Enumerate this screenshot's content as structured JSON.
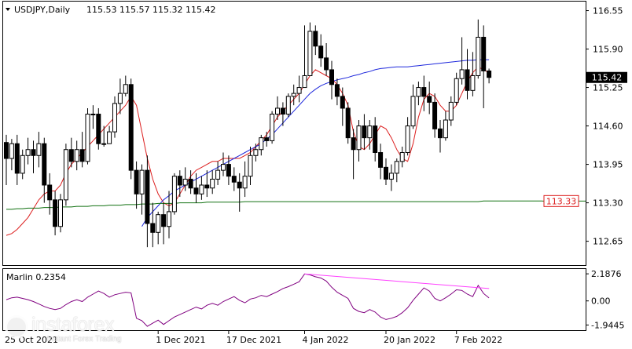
{
  "header": {
    "symbol": "USDJPY,Daily",
    "ohlc": "115.53 115.57 115.32 115.42",
    "indicator": "Marlin 0.2354"
  },
  "price_axis_labels": [
    "116.55",
    "115.90",
    "115.25",
    "114.60",
    "113.95",
    "113.30",
    "112.65"
  ],
  "osc_axis_labels": [
    "2.1876",
    "0.00",
    "-1.9445"
  ],
  "date_labels": [
    "1 Dec 2021",
    "17 Dec 2021",
    "4 Jan 2022",
    "20 Jan 2022",
    "7 Feb 2022"
  ],
  "current_price_label": "115.42",
  "level_label": "113.33",
  "watermark": {
    "name": "instaforex",
    "tagline": "Instant Forex Trading",
    "corner_text": "25 Oct 2021"
  },
  "colors": {
    "bull": "#ffffff",
    "bear": "#000000",
    "ma_fast": "#dc1e1e",
    "ma_mid": "#1e28dc",
    "ma_slow": "#107010",
    "oscillator": "#800080",
    "divergence": "#ff40ff",
    "level_box": "#dc1e1e"
  },
  "chart_data": [
    {
      "type": "candlestick",
      "title": "USDJPY,Daily",
      "ylim": [
        112.3,
        116.65
      ],
      "candles": [
        [
          114.32,
          114.05,
          114.45,
          113.6
        ],
        [
          114.05,
          114.3,
          114.38,
          113.85
        ],
        [
          114.3,
          113.8,
          114.45,
          113.6
        ],
        [
          113.8,
          114.1,
          114.2,
          113.7
        ],
        [
          114.1,
          114.2,
          114.4,
          113.95
        ],
        [
          114.2,
          114.1,
          114.35,
          113.8
        ],
        [
          114.1,
          114.3,
          114.5,
          113.9
        ],
        [
          114.3,
          113.6,
          114.4,
          113.3
        ],
        [
          113.6,
          113.35,
          113.8,
          113.1
        ],
        [
          113.35,
          112.9,
          113.5,
          112.75
        ],
        [
          112.9,
          113.35,
          113.45,
          112.8
        ],
        [
          113.35,
          114.2,
          114.3,
          113.25
        ],
        [
          114.2,
          114.0,
          114.4,
          113.9
        ],
        [
          114.0,
          114.2,
          114.35,
          113.85
        ],
        [
          114.2,
          114.0,
          114.5,
          113.9
        ],
        [
          114.0,
          114.8,
          114.9,
          113.95
        ],
        [
          114.8,
          114.8,
          114.95,
          114.55
        ],
        [
          114.8,
          114.3,
          114.9,
          114.2
        ],
        [
          114.3,
          114.3,
          114.6,
          114.25
        ],
        [
          114.3,
          114.5,
          114.6,
          114.3
        ],
        [
          114.5,
          114.98,
          115.1,
          114.4
        ],
        [
          114.98,
          115.15,
          115.4,
          114.8
        ],
        [
          115.15,
          115.3,
          115.45,
          115.1
        ],
        [
          115.3,
          113.85,
          115.4,
          113.7
        ],
        [
          113.85,
          113.45,
          114.0,
          113.2
        ],
        [
          113.45,
          113.85,
          113.95,
          113.1
        ],
        [
          113.85,
          112.95,
          114.1,
          112.55
        ],
        [
          112.95,
          112.8,
          113.3,
          112.55
        ],
        [
          112.8,
          113.1,
          113.15,
          112.6
        ],
        [
          113.1,
          112.9,
          113.3,
          112.6
        ],
        [
          112.9,
          113.15,
          113.5,
          112.7
        ],
        [
          113.15,
          113.75,
          113.8,
          113.1
        ],
        [
          113.75,
          113.6,
          113.85,
          113.4
        ],
        [
          113.6,
          113.7,
          113.9,
          113.5
        ],
        [
          113.7,
          113.55,
          113.85,
          113.45
        ],
        [
          113.55,
          113.45,
          113.8,
          113.3
        ],
        [
          113.45,
          113.6,
          113.75,
          113.35
        ],
        [
          113.6,
          113.55,
          113.85,
          113.4
        ],
        [
          113.55,
          113.7,
          113.85,
          113.45
        ],
        [
          113.7,
          113.85,
          114.0,
          113.6
        ],
        [
          113.85,
          113.95,
          114.15,
          113.75
        ],
        [
          113.95,
          113.75,
          114.1,
          113.6
        ],
        [
          113.75,
          113.65,
          113.9,
          113.5
        ],
        [
          113.65,
          113.55,
          113.8,
          113.15
        ],
        [
          113.55,
          113.75,
          114.0,
          113.4
        ],
        [
          113.75,
          114.1,
          114.25,
          113.6
        ],
        [
          114.1,
          114.2,
          114.3,
          114.0
        ],
        [
          114.2,
          114.4,
          114.45,
          114.1
        ],
        [
          114.4,
          114.35,
          114.5,
          114.25
        ],
        [
          114.35,
          114.8,
          114.85,
          114.3
        ],
        [
          114.8,
          114.9,
          115.1,
          114.7
        ],
        [
          114.9,
          114.8,
          115.0,
          114.6
        ],
        [
          114.8,
          115.1,
          115.15,
          114.75
        ],
        [
          115.1,
          115.15,
          115.3,
          114.95
        ],
        [
          115.15,
          115.25,
          115.45,
          115.0
        ],
        [
          115.25,
          115.45,
          116.3,
          115.3
        ],
        [
          115.45,
          116.2,
          116.35,
          115.5
        ],
        [
          116.2,
          115.95,
          116.3,
          115.8
        ],
        [
          115.95,
          115.75,
          116.15,
          115.6
        ],
        [
          115.75,
          115.55,
          116.0,
          115.45
        ],
        [
          115.55,
          115.3,
          115.7,
          115.05
        ],
        [
          115.3,
          115.1,
          115.4,
          114.95
        ],
        [
          115.1,
          114.9,
          115.25,
          114.6
        ],
        [
          114.9,
          114.4,
          115.0,
          114.3
        ],
        [
          114.4,
          114.2,
          114.55,
          113.7
        ],
        [
          114.2,
          114.6,
          114.7,
          114.0
        ],
        [
          114.6,
          114.4,
          114.8,
          114.2
        ],
        [
          114.4,
          114.6,
          114.7,
          114.2
        ],
        [
          114.6,
          114.15,
          114.75,
          114.0
        ],
        [
          114.15,
          113.9,
          114.3,
          113.7
        ],
        [
          113.9,
          113.7,
          114.05,
          113.6
        ],
        [
          113.7,
          113.8,
          113.95,
          113.5
        ],
        [
          113.8,
          114.0,
          114.05,
          113.65
        ],
        [
          114.0,
          114.15,
          114.25,
          113.9
        ],
        [
          114.15,
          114.6,
          114.75,
          114.1
        ],
        [
          114.6,
          115.1,
          115.3,
          114.55
        ],
        [
          115.1,
          115.25,
          115.35,
          114.95
        ],
        [
          115.25,
          115.1,
          115.45,
          114.85
        ],
        [
          115.1,
          115.0,
          115.35,
          114.8
        ],
        [
          115.0,
          114.55,
          115.15,
          114.4
        ],
        [
          114.55,
          114.4,
          114.7,
          114.15
        ],
        [
          114.4,
          114.7,
          114.85,
          114.35
        ],
        [
          114.7,
          115.0,
          115.1,
          114.6
        ],
        [
          115.0,
          115.4,
          115.5,
          114.95
        ],
        [
          115.4,
          115.55,
          116.1,
          115.3
        ],
        [
          115.55,
          115.2,
          115.9,
          115.05
        ],
        [
          115.2,
          115.45,
          115.85,
          115.1
        ],
        [
          115.45,
          116.1,
          116.4,
          115.4
        ],
        [
          116.1,
          115.53,
          116.3,
          114.9
        ],
        [
          115.53,
          115.42,
          115.57,
          115.32
        ]
      ],
      "series": [
        {
          "name": "",
          "role": "fast",
          "values": [
            112.75,
            112.78,
            112.85,
            112.95,
            113.05,
            113.2,
            113.35,
            113.45,
            113.5,
            113.5,
            113.6,
            113.8,
            113.95,
            114.05,
            114.15,
            114.25,
            114.35,
            114.45,
            114.55,
            114.65,
            114.75,
            114.85,
            114.95,
            115.1,
            114.95,
            114.5,
            114.05,
            113.7,
            113.45,
            113.3,
            113.25,
            113.3,
            113.45,
            113.6,
            113.75,
            113.85,
            113.9,
            113.95,
            114.0,
            114.0,
            114.05,
            114.05,
            114.05,
            114.05,
            114.1,
            114.15,
            114.25,
            114.35,
            114.45,
            114.6,
            114.75,
            114.85,
            114.95,
            115.05,
            115.15,
            115.3,
            115.45,
            115.55,
            115.5,
            115.45,
            115.4,
            115.3,
            115.15,
            114.95,
            114.5,
            114.25,
            114.2,
            114.3,
            114.45,
            114.6,
            114.55,
            114.4,
            114.2,
            114.05,
            114.0,
            114.3,
            114.75,
            115.05,
            115.15,
            115.1,
            114.95,
            114.85,
            114.85,
            114.95,
            115.15,
            115.35,
            115.5,
            115.6,
            115.55,
            115.5
          ]
        },
        {
          "name": "",
          "role": "mid",
          "values": [
            null,
            null,
            null,
            null,
            null,
            null,
            null,
            null,
            null,
            null,
            null,
            null,
            null,
            null,
            null,
            null,
            null,
            null,
            null,
            null,
            null,
            null,
            null,
            null,
            null,
            112.9,
            113.05,
            113.15,
            113.25,
            113.35,
            113.42,
            113.5,
            113.55,
            113.6,
            113.65,
            113.7,
            113.75,
            113.8,
            113.85,
            113.9,
            113.95,
            114.0,
            114.05,
            114.1,
            114.15,
            114.2,
            114.25,
            114.3,
            114.38,
            114.45,
            114.55,
            114.65,
            114.75,
            114.85,
            114.95,
            115.05,
            115.15,
            115.22,
            115.28,
            115.32,
            115.35,
            115.38,
            115.4,
            115.42,
            115.45,
            115.47,
            115.5,
            115.52,
            115.55,
            115.57,
            115.58,
            115.59,
            115.6,
            115.6,
            115.6,
            115.61,
            115.62,
            115.63,
            115.64,
            115.65,
            115.66,
            115.67,
            115.68,
            115.69,
            115.7,
            115.71,
            115.71,
            115.72,
            115.72,
            115.72
          ]
        },
        {
          "name": "",
          "role": "slow",
          "values": [
            113.19,
            113.19,
            113.2,
            113.2,
            113.21,
            113.21,
            113.21,
            113.22,
            113.22,
            113.22,
            113.23,
            113.23,
            113.23,
            113.24,
            113.24,
            113.24,
            113.25,
            113.25,
            113.25,
            113.26,
            113.26,
            113.26,
            113.27,
            113.27,
            113.27,
            113.28,
            113.28,
            113.28,
            113.29,
            113.29,
            113.29,
            113.29,
            113.3,
            113.3,
            113.3,
            113.3,
            113.3,
            113.31,
            113.31,
            113.31,
            113.31,
            113.31,
            113.31,
            113.31,
            113.32,
            113.32,
            113.32,
            113.32,
            113.32,
            113.32,
            113.32,
            113.32,
            113.32,
            113.32,
            113.32,
            113.32,
            113.32,
            113.32,
            113.32,
            113.32,
            113.32,
            113.32,
            113.32,
            113.32,
            113.32,
            113.32,
            113.32,
            113.32,
            113.32,
            113.32,
            113.32,
            113.32,
            113.32,
            113.32,
            113.32,
            113.32,
            113.32,
            113.32,
            113.32,
            113.32,
            113.32,
            113.32,
            113.32,
            113.32,
            113.32,
            113.32,
            113.32,
            113.32,
            113.33,
            113.33
          ]
        }
      ],
      "level": 113.33,
      "current": 115.42
    },
    {
      "type": "line",
      "title": "Marlin 0.2354",
      "ylim": [
        -2.3,
        2.45
      ],
      "series": [
        {
          "name": "",
          "role": "oscillator",
          "values": [
            0.1,
            0.25,
            0.3,
            0.2,
            0.1,
            -0.05,
            -0.25,
            -0.45,
            -0.6,
            -0.7,
            -0.6,
            -0.3,
            -0.05,
            0.1,
            -0.05,
            0.3,
            0.55,
            0.8,
            0.6,
            0.3,
            0.5,
            0.6,
            0.7,
            0.65,
            -1.4,
            -1.6,
            -2.05,
            -1.8,
            -1.55,
            -1.9,
            -1.6,
            -1.3,
            -1.1,
            -0.9,
            -0.7,
            -0.5,
            -0.65,
            -0.35,
            -0.2,
            -0.35,
            -0.05,
            0.15,
            0.35,
            0.05,
            -0.15,
            0.15,
            0.25,
            0.45,
            0.35,
            0.55,
            0.75,
            1.0,
            1.15,
            1.35,
            1.55,
            2.18,
            2.1,
            1.95,
            1.85,
            1.6,
            1.1,
            0.7,
            0.45,
            0.2,
            -0.6,
            -0.85,
            -0.95,
            -0.7,
            -0.9,
            -1.3,
            -1.5,
            -1.4,
            -1.25,
            -0.95,
            -0.55,
            0.05,
            0.55,
            1.05,
            0.8,
            0.2,
            0.0,
            0.25,
            0.55,
            0.9,
            0.85,
            0.55,
            0.35,
            1.25,
            0.6,
            0.24
          ]
        },
        {
          "name": "",
          "role": "divergence",
          "x": [
            55,
            88
          ],
          "values": [
            2.18,
            1.0
          ]
        }
      ]
    }
  ]
}
